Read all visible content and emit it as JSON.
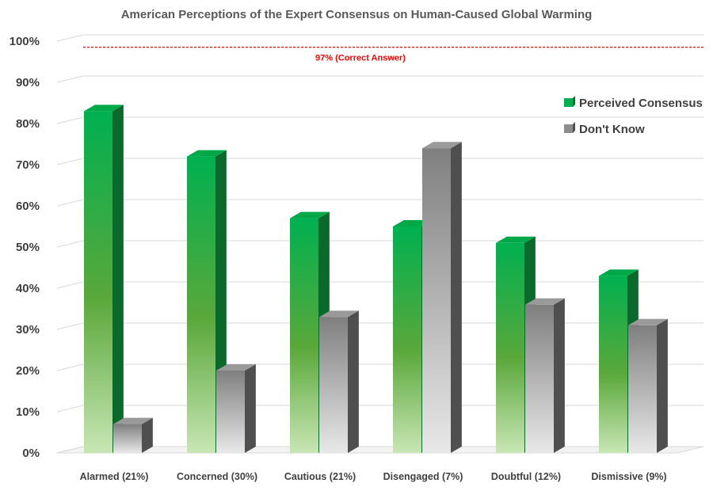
{
  "chart_data": {
    "type": "bar",
    "title": "American Perceptions of the Expert Consensus on Human-Caused Global Warming",
    "xlabel": "",
    "ylabel": "",
    "categories": [
      "Alarmed (21%)",
      "Concerned (30%)",
      "Cautious (21%)",
      "Disengaged (7%)",
      "Doubtful (12%)",
      "Dismissive (9%)"
    ],
    "series": [
      {
        "name": "Perceived Consensus",
        "values": [
          83,
          72,
          57,
          55,
          51,
          43
        ],
        "color": "#00b050"
      },
      {
        "name": "Don't Know",
        "values": [
          7,
          20,
          33,
          74,
          36,
          31
        ],
        "color": "#808080"
      }
    ],
    "yticks": [
      "0%",
      "10%",
      "20%",
      "30%",
      "40%",
      "50%",
      "60%",
      "70%",
      "80%",
      "90%",
      "100%"
    ],
    "ylim": [
      0,
      100
    ],
    "reference_line": {
      "value": 97,
      "label": "97% (Correct Answer)",
      "color": "#ff0000"
    },
    "grid": true,
    "legend_position": "top-right",
    "style": "3d-column"
  }
}
